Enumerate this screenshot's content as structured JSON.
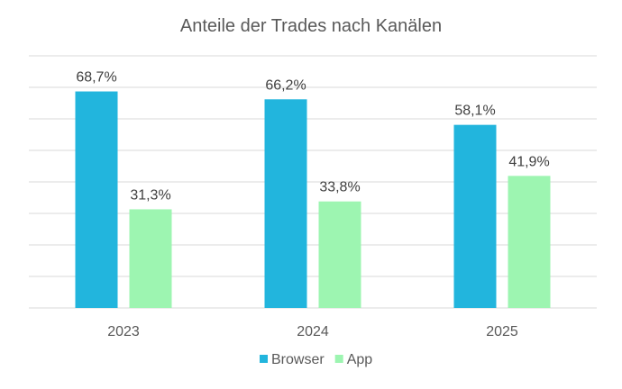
{
  "chart_data": {
    "type": "bar",
    "title": "Anteile der Trades nach Kanälen",
    "categories": [
      "2023",
      "2024",
      "2025"
    ],
    "series": [
      {
        "name": "Browser",
        "values": [
          68.7,
          66.2,
          58.1
        ],
        "labels": [
          "68,7%",
          "66,2%",
          "58,1%"
        ],
        "color": "#22B5DD"
      },
      {
        "name": "App",
        "values": [
          31.3,
          33.8,
          41.9
        ],
        "labels": [
          "31,3%",
          "33,8%",
          "41,9%"
        ],
        "color": "#9DF5B1"
      }
    ],
    "xlabel": "",
    "ylabel": "",
    "ylim": [
      0,
      80
    ],
    "y_grid_step": 10,
    "grid": true,
    "y_tick_labels_shown": false,
    "legend_position": "bottom"
  }
}
